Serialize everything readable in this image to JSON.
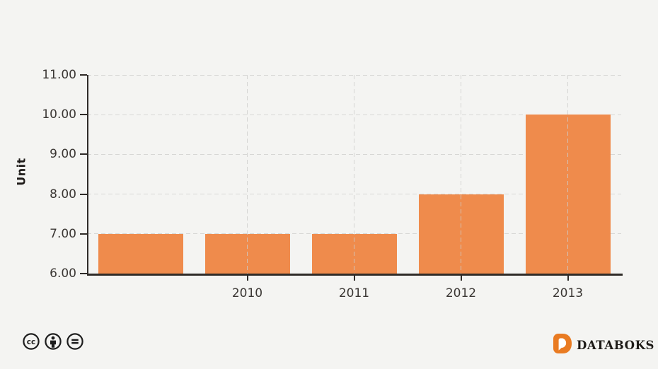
{
  "chart_data": {
    "type": "bar",
    "categories": [
      "",
      "2010",
      "2011",
      "2012",
      "2013"
    ],
    "values": [
      7,
      7,
      7,
      8,
      10
    ],
    "title": "",
    "xlabel": "",
    "ylabel": "Unit",
    "ylim": [
      6,
      11
    ],
    "yticks": [
      "6.00",
      "7.00",
      "8.00",
      "9.00",
      "10.00",
      "11.00"
    ],
    "grid": "dashed; horizontal at every y tick, vertical only at labeled x ticks",
    "legend": "none",
    "bar_color": "#EF8B4C"
  },
  "colors": {
    "background": "#F4F4F2",
    "bar": "#EF8B4C",
    "axis": "#2F2B28",
    "gridline": "#D7D7D5",
    "tick_text": "#3B3734",
    "license_icon": "#1D1D1D",
    "brand_orange": "#E97B22",
    "brand_text": "#1D1A17"
  },
  "footer": {
    "license": {
      "icons": [
        "cc-icon",
        "attribution-icon",
        "no-derivatives-icon"
      ]
    },
    "brand": {
      "icon": "databoks-d-icon",
      "name": "DATABOKS"
    }
  }
}
